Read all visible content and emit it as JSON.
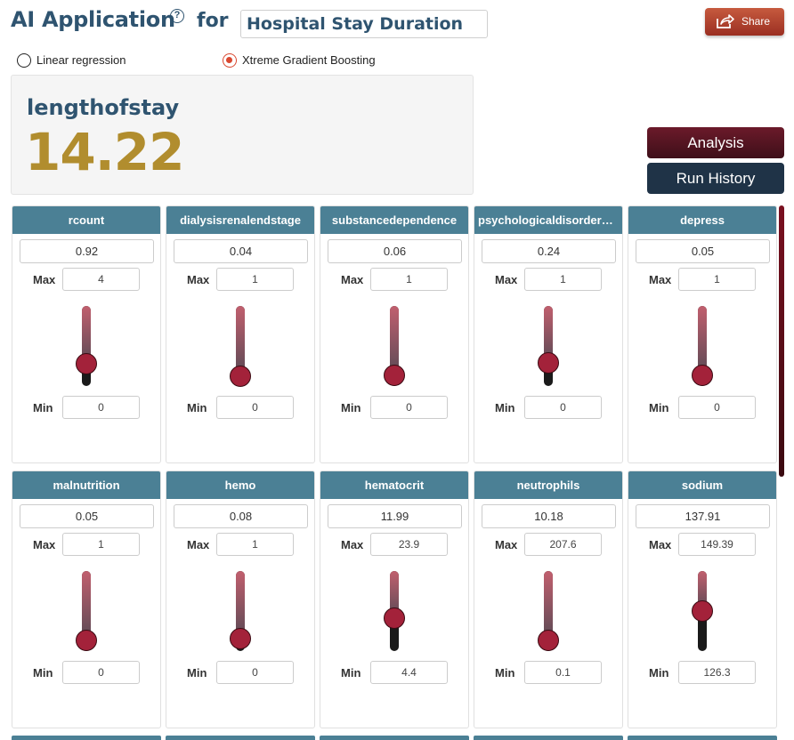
{
  "header": {
    "app_title": "AI Application",
    "help_icon": "?",
    "for_label": "for",
    "target": "Hospital Stay Duration",
    "share_label": "Share"
  },
  "model_options": [
    {
      "label": "Linear regression",
      "selected": false
    },
    {
      "label": "Xtreme Gradient Boosting",
      "selected": true
    }
  ],
  "result": {
    "label": "lengthofstay",
    "value": "14.22"
  },
  "actions": {
    "analysis_label": "Analysis",
    "history_label": "Run History"
  },
  "colors": {
    "title": "#2f5470",
    "result_value": "#b18d2e",
    "card_header": "#4b8095",
    "slider_thumb": "#a3223a"
  },
  "labels": {
    "max": "Max",
    "min": "Min"
  },
  "features": [
    {
      "name": "rcount",
      "value": "0.92",
      "max": "4",
      "min": "0",
      "level": 0.23
    },
    {
      "name": "dialysisrenalendstage",
      "value": "0.04",
      "max": "1",
      "min": "0",
      "level": 0.04
    },
    {
      "name": "substancedependence",
      "value": "0.06",
      "max": "1",
      "min": "0",
      "level": 0.06
    },
    {
      "name": "psychologicaldisordermajor",
      "value": "0.24",
      "max": "1",
      "min": "0",
      "level": 0.24
    },
    {
      "name": "depress",
      "value": "0.05",
      "max": "1",
      "min": "0",
      "level": 0.05
    },
    {
      "name": "malnutrition",
      "value": "0.05",
      "max": "1",
      "min": "0",
      "level": 0.05
    },
    {
      "name": "hemo",
      "value": "0.08",
      "max": "1",
      "min": "0",
      "level": 0.08
    },
    {
      "name": "hematocrit",
      "value": "11.99",
      "max": "23.9",
      "min": "4.4",
      "level": 0.39
    },
    {
      "name": "neutrophils",
      "value": "10.18",
      "max": "207.6",
      "min": "0.1",
      "level": 0.05
    },
    {
      "name": "sodium",
      "value": "137.91",
      "max": "149.39",
      "min": "126.3",
      "level": 0.5
    }
  ]
}
